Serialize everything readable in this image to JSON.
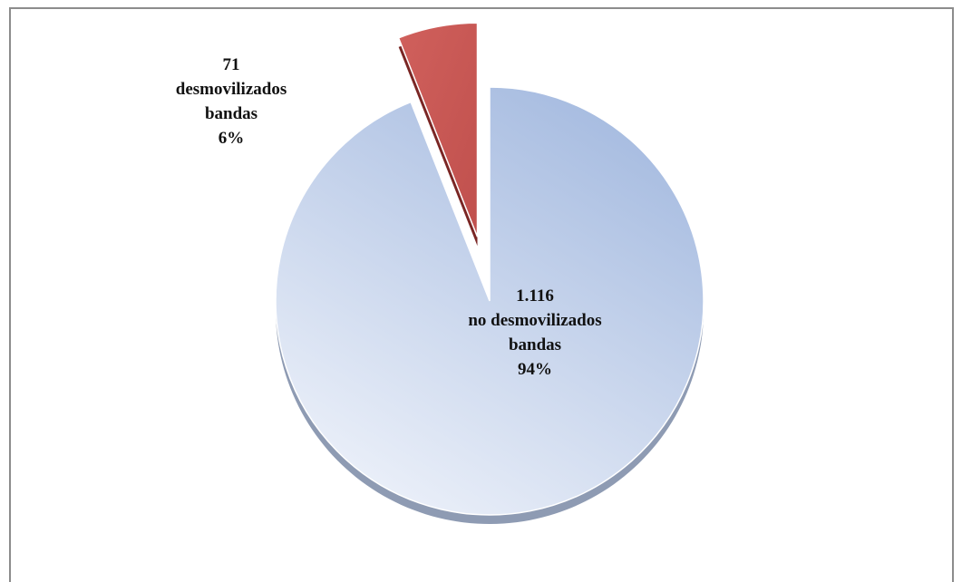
{
  "chart_data": {
    "type": "pie",
    "categories": [
      "desmovilizados bandas",
      "no desmovilizados bandas"
    ],
    "values": [
      6,
      94
    ],
    "value_labels": [
      "6%",
      "94%"
    ],
    "counts": [
      71,
      1116
    ],
    "count_labels": [
      "71",
      "1.116"
    ],
    "colors": [
      "#c0504d",
      "#a7bde0"
    ]
  }
}
